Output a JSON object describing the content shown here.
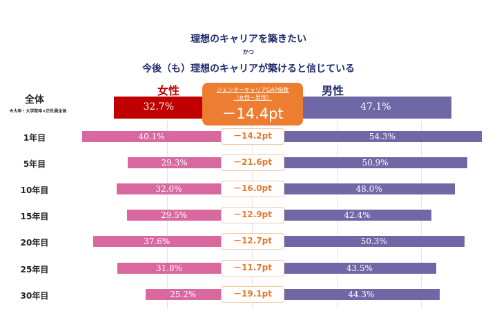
{
  "chart_data": {
    "type": "bar",
    "orientation": "horizontal-butterfly",
    "title_lines": [
      "理想のキャリアを築きたい",
      "かつ",
      "今後（も）理想のキャリアが築けると信じている"
    ],
    "left_label": "女性",
    "right_label": "男性",
    "gap_header": "ジェンダーキャリアGAP指数",
    "gap_subheader": "（女性－男性）",
    "total": {
      "label": "全体",
      "note": "※大卒・大学院卒×正社員全体",
      "female": 32.7,
      "male": 47.1,
      "female_text": "32.7%",
      "male_text": "47.1%",
      "gap_text": "－14.4pt"
    },
    "categories": [
      "1年目",
      "5年目",
      "10年目",
      "15年目",
      "20年目",
      "25年目",
      "30年目"
    ],
    "series": [
      {
        "name": "女性",
        "values": [
          40.1,
          29.3,
          32.0,
          29.5,
          37.6,
          31.8,
          25.2
        ],
        "labels": [
          "40.1%",
          "29.3%",
          "32.0%",
          "29.5%",
          "37.6%",
          "31.8%",
          "25.2%"
        ]
      },
      {
        "name": "男性",
        "values": [
          54.3,
          50.9,
          48.0,
          42.4,
          50.3,
          43.5,
          44.3
        ],
        "labels": [
          "54.3%",
          "50.9%",
          "48.0%",
          "42.4%",
          "50.3%",
          "43.5%",
          "44.3%"
        ]
      }
    ],
    "gap_labels": [
      "－14.2pt",
      "－21.6pt",
      "－16.0pt",
      "－12.9pt",
      "－12.7pt",
      "－11.7pt",
      "－19.1pt"
    ],
    "grid": true,
    "colors": {
      "total_female": "#c00000",
      "female": "#d9689e",
      "male": "#7067a6",
      "gap": "#ed7d31",
      "title": "#1f2a6b"
    }
  }
}
